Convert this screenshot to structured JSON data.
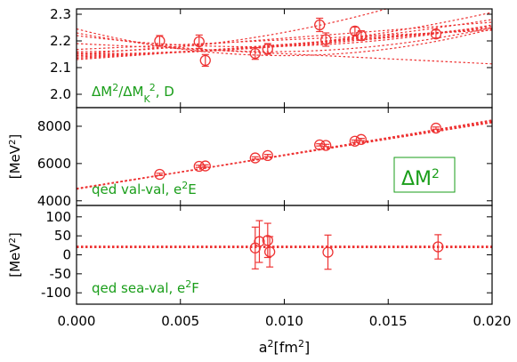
{
  "chart_data": {
    "type": "scatter",
    "x_axis": {
      "label_main": "a",
      "label_sup": "2",
      "label_unit_open": "[fm",
      "label_unit_sup": "2",
      "label_unit_close": "]",
      "range": [
        0.0,
        0.02
      ],
      "ticks": [
        0.0,
        0.005,
        0.01,
        0.015,
        0.02
      ],
      "tick_labels": [
        "0.000",
        "0.005",
        "0.010",
        "0.015",
        "0.020"
      ]
    },
    "color": "#ee3333",
    "annotation_color": "#1a9e1a",
    "panels": [
      {
        "id": "ratio",
        "annotation": [
          "ΔM",
          "2",
          "/ΔM",
          "K",
          "2",
          ", D"
        ],
        "ylabel": null,
        "ylim": [
          1.95,
          2.32
        ],
        "y_ticks": [
          2.0,
          2.1,
          2.2,
          2.3
        ],
        "y_tick_labels": [
          "2.0",
          "2.1",
          "2.2",
          "2.3"
        ],
        "points": [
          {
            "x": 0.004,
            "y": 2.2,
            "err": 0.02
          },
          {
            "x": 0.0059,
            "y": 2.197,
            "err": 0.025
          },
          {
            "x": 0.0062,
            "y": 2.127,
            "err": 0.022
          },
          {
            "x": 0.0086,
            "y": 2.153,
            "err": 0.022
          },
          {
            "x": 0.0092,
            "y": 2.17,
            "err": 0.02
          },
          {
            "x": 0.0117,
            "y": 2.26,
            "err": 0.025
          },
          {
            "x": 0.012,
            "y": 2.205,
            "err": 0.025
          },
          {
            "x": 0.0134,
            "y": 2.237,
            "err": 0.015
          },
          {
            "x": 0.0137,
            "y": 2.22,
            "err": 0.018
          },
          {
            "x": 0.0173,
            "y": 2.226,
            "err": 0.015
          }
        ],
        "fits": [
          {
            "kind": "quad",
            "y0": 2.16,
            "b": 0,
            "c": 720
          },
          {
            "kind": "quad",
            "y0": 2.155,
            "b": -2,
            "c": 480
          },
          {
            "kind": "quad",
            "y0": 2.15,
            "b": 0.5,
            "c": 300
          },
          {
            "kind": "quad",
            "y0": 2.145,
            "b": 1.5,
            "c": 200
          },
          {
            "kind": "quad",
            "y0": 2.14,
            "b": 3,
            "c": 120
          },
          {
            "kind": "quad",
            "y0": 2.135,
            "b": 4.5,
            "c": 60
          },
          {
            "kind": "quad",
            "y0": 2.13,
            "b": 5.5,
            "c": 20
          },
          {
            "kind": "quad",
            "y0": 2.22,
            "b": -10,
            "c": 600
          },
          {
            "kind": "quad",
            "y0": 2.23,
            "b": -15,
            "c": 800
          },
          {
            "kind": "quad",
            "y0": 2.245,
            "b": -20,
            "c": 1000
          },
          {
            "kind": "quad",
            "y0": 2.15,
            "b": 6,
            "c": 0
          },
          {
            "kind": "quad",
            "y0": 2.168,
            "b": 3.6,
            "c": 0
          },
          {
            "kind": "quad",
            "y0": 2.19,
            "b": -3.8,
            "c": 0
          }
        ]
      },
      {
        "id": "dm2",
        "annotation": [
          "qed val-val, e",
          "2",
          "E"
        ],
        "big_label": [
          "ΔM",
          "2"
        ],
        "ylabel": [
          "[MeV",
          "2",
          "]"
        ],
        "ylim": [
          3750,
          9000
        ],
        "y_ticks": [
          4000,
          6000,
          8000
        ],
        "y_tick_labels": [
          "4000",
          "6000",
          "8000"
        ],
        "points": [
          {
            "x": 0.004,
            "y": 5420,
            "err": 60
          },
          {
            "x": 0.0059,
            "y": 5850,
            "err": 60
          },
          {
            "x": 0.0062,
            "y": 5870,
            "err": 60
          },
          {
            "x": 0.0086,
            "y": 6300,
            "err": 60
          },
          {
            "x": 0.0092,
            "y": 6430,
            "err": 60
          },
          {
            "x": 0.0117,
            "y": 7000,
            "err": 60
          },
          {
            "x": 0.012,
            "y": 6970,
            "err": 60
          },
          {
            "x": 0.0134,
            "y": 7200,
            "err": 60
          },
          {
            "x": 0.0137,
            "y": 7290,
            "err": 60
          },
          {
            "x": 0.0173,
            "y": 7900,
            "err": 60
          }
        ],
        "fits": [
          {
            "kind": "quad",
            "y0": 4620,
            "b": 185000,
            "c": 0
          },
          {
            "kind": "quad",
            "y0": 4630,
            "b": 183000,
            "c": 0
          },
          {
            "kind": "quad",
            "y0": 4640,
            "b": 181000,
            "c": 0
          },
          {
            "kind": "quad",
            "y0": 4650,
            "b": 179000,
            "c": 0
          },
          {
            "kind": "quad",
            "y0": 4660,
            "b": 177000,
            "c": 0
          },
          {
            "kind": "quad",
            "y0": 4670,
            "b": 176000,
            "c": 0
          },
          {
            "kind": "quad",
            "y0": 4640,
            "b": 175000,
            "c": 500000
          }
        ]
      },
      {
        "id": "sea",
        "annotation": [
          "qed sea-val, e",
          "2",
          "F"
        ],
        "ylabel": [
          "[MeV",
          "2",
          "]"
        ],
        "ylim": [
          -130,
          130
        ],
        "y_ticks": [
          -100,
          -50,
          0,
          50,
          100
        ],
        "y_tick_labels": [
          "-100",
          "-50",
          "0",
          "50",
          "100"
        ],
        "points": [
          {
            "x": 0.0086,
            "y": 18,
            "err": 55
          },
          {
            "x": 0.0088,
            "y": 35,
            "err": 55
          },
          {
            "x": 0.0092,
            "y": 38,
            "err": 45
          },
          {
            "x": 0.0093,
            "y": 8,
            "err": 40
          },
          {
            "x": 0.0121,
            "y": 7,
            "err": 45
          },
          {
            "x": 0.0174,
            "y": 21,
            "err": 32
          }
        ],
        "fits": [
          {
            "kind": "quad",
            "y0": 21,
            "b": 0,
            "c": 0
          },
          {
            "kind": "quad",
            "y0": 19,
            "b": 0,
            "c": 0
          },
          {
            "kind": "quad",
            "y0": 23,
            "b": 0,
            "c": 0
          }
        ]
      }
    ]
  }
}
